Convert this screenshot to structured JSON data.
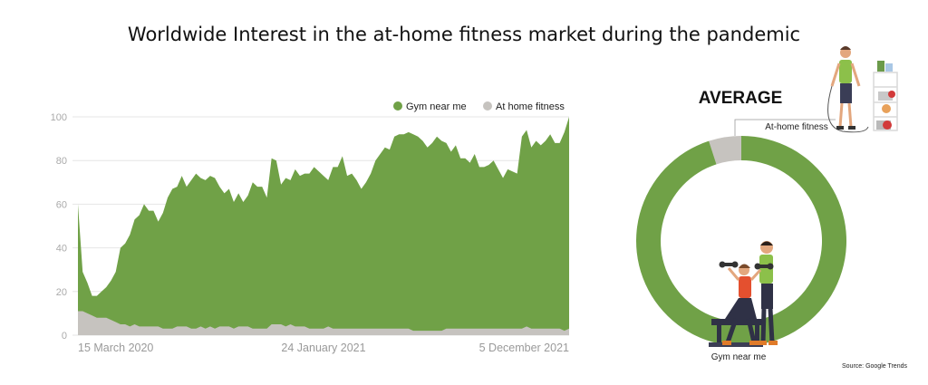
{
  "chart_data": [
    {
      "type": "area",
      "title": "Worldwide Interest in the at-home fitness market during the pandemic",
      "ylim": [
        0,
        100
      ],
      "yticks": [
        0,
        20,
        40,
        60,
        80,
        100
      ],
      "x_tick_labels": [
        "15 March 2020",
        "24 January 2021",
        "5 December 2021"
      ],
      "grid": true,
      "legend_position": "top-right",
      "series": [
        {
          "name": "Gym near me",
          "color": "#70a147",
          "values": [
            60,
            29,
            24,
            18,
            18,
            20,
            22,
            25,
            29,
            40,
            42,
            46,
            53,
            55,
            60,
            57,
            57,
            52,
            56,
            63,
            67,
            68,
            73,
            68,
            71,
            74,
            72,
            71,
            73,
            72,
            68,
            65,
            67,
            61,
            65,
            61,
            64,
            70,
            68,
            68,
            63,
            81,
            80,
            69,
            72,
            71,
            76,
            73,
            74,
            74,
            77,
            75,
            73,
            71,
            77,
            77,
            82,
            73,
            74,
            71,
            67,
            70,
            74,
            80,
            83,
            86,
            85,
            91,
            92,
            92,
            93,
            92,
            91,
            89,
            86,
            88,
            91,
            89,
            88,
            84,
            87,
            81,
            81,
            79,
            83,
            77,
            77,
            78,
            80,
            76,
            72,
            76,
            75,
            74,
            91,
            94,
            86,
            89,
            87,
            89,
            92,
            88,
            88,
            93,
            100
          ]
        },
        {
          "name": "At home fitness",
          "color": "#c6c3bf",
          "values": [
            11,
            11,
            10,
            9,
            8,
            8,
            8,
            7,
            6,
            5,
            5,
            4,
            5,
            4,
            4,
            4,
            4,
            4,
            3,
            3,
            3,
            4,
            4,
            4,
            3,
            3,
            4,
            3,
            4,
            3,
            4,
            4,
            4,
            3,
            4,
            4,
            4,
            3,
            3,
            3,
            3,
            5,
            5,
            5,
            4,
            5,
            4,
            4,
            4,
            3,
            3,
            3,
            3,
            4,
            3,
            3,
            3,
            3,
            3,
            3,
            3,
            3,
            3,
            3,
            3,
            3,
            3,
            3,
            3,
            3,
            3,
            2,
            2,
            2,
            2,
            2,
            2,
            2,
            3,
            3,
            3,
            3,
            3,
            3,
            3,
            3,
            3,
            3,
            3,
            3,
            3,
            3,
            3,
            3,
            3,
            4,
            3,
            3,
            3,
            3,
            3,
            3,
            3,
            2,
            3
          ]
        }
      ]
    },
    {
      "type": "pie",
      "title": "AVERAGE",
      "slices": [
        {
          "label": "Gym near me",
          "value": 95,
          "color": "#70a147"
        },
        {
          "label": "At-home fitness",
          "value": 5,
          "color": "#c6c3bf"
        }
      ]
    }
  ],
  "source": "Source: Google Trends",
  "illustrations": [
    "jump-rope-man-illustration",
    "gym-couple-illustration"
  ]
}
